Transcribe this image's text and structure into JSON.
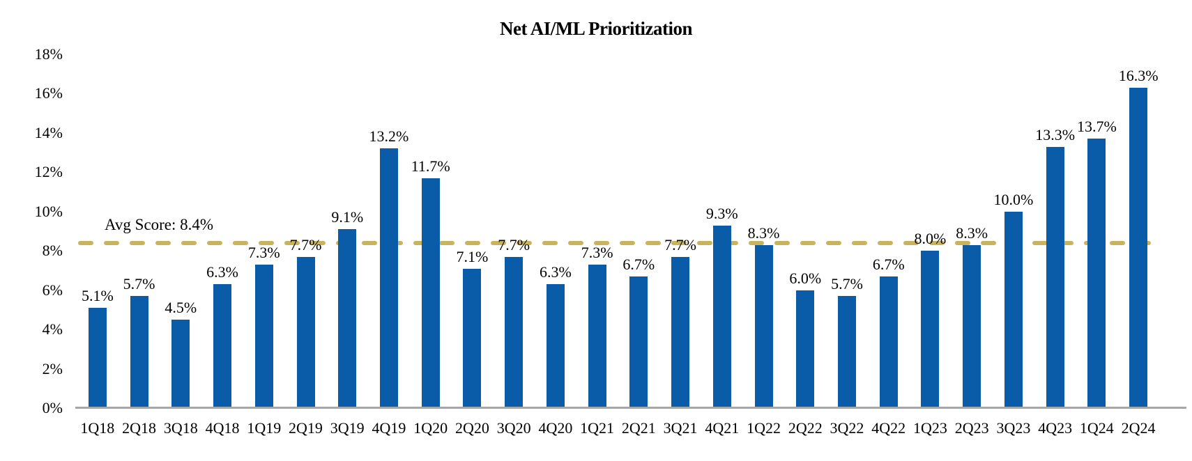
{
  "title": "Net AI/ML Prioritization",
  "avg_line": {
    "label": "Avg Score: 8.4%",
    "value": 8.4
  },
  "colors": {
    "bar": "#0b5ca8",
    "avg_line": "#c9b35e",
    "axis": "#a6a6a6",
    "text": "#000000"
  },
  "chart_data": {
    "type": "bar",
    "title": "Net AI/ML Prioritization",
    "xlabel": "",
    "ylabel": "",
    "ylim": [
      0,
      18
    ],
    "ytick_labels": [
      "0%",
      "2%",
      "4%",
      "6%",
      "8%",
      "10%",
      "12%",
      "14%",
      "16%",
      "18%"
    ],
    "ytick_values": [
      0,
      2,
      4,
      6,
      8,
      10,
      12,
      14,
      16,
      18
    ],
    "grid": false,
    "legend": false,
    "categories": [
      "1Q18",
      "2Q18",
      "3Q18",
      "4Q18",
      "1Q19",
      "2Q19",
      "3Q19",
      "4Q19",
      "1Q20",
      "2Q20",
      "3Q20",
      "4Q20",
      "1Q21",
      "2Q21",
      "3Q21",
      "4Q21",
      "1Q22",
      "2Q22",
      "3Q22",
      "4Q22",
      "1Q23",
      "2Q23",
      "3Q23",
      "4Q23",
      "1Q24",
      "2Q24"
    ],
    "values": [
      5.1,
      5.7,
      4.5,
      6.3,
      7.3,
      7.7,
      9.1,
      13.2,
      11.7,
      7.1,
      7.7,
      6.3,
      7.3,
      6.7,
      7.7,
      9.3,
      8.3,
      6.0,
      5.7,
      6.7,
      8.0,
      8.3,
      10.0,
      13.3,
      13.7,
      16.3
    ],
    "value_labels": [
      "5.1%",
      "5.7%",
      "4.5%",
      "6.3%",
      "7.3%",
      "7.7%",
      "9.1%",
      "13.2%",
      "11.7%",
      "7.1%",
      "7.7%",
      "6.3%",
      "7.3%",
      "6.7%",
      "7.7%",
      "9.3%",
      "8.3%",
      "6.0%",
      "5.7%",
      "6.7%",
      "8.0%",
      "8.3%",
      "10.0%",
      "13.3%",
      "13.7%",
      "16.3%"
    ],
    "annotation": {
      "text": "Avg Score: 8.4%",
      "line_value": 8.4,
      "line_style": "dashed"
    }
  }
}
